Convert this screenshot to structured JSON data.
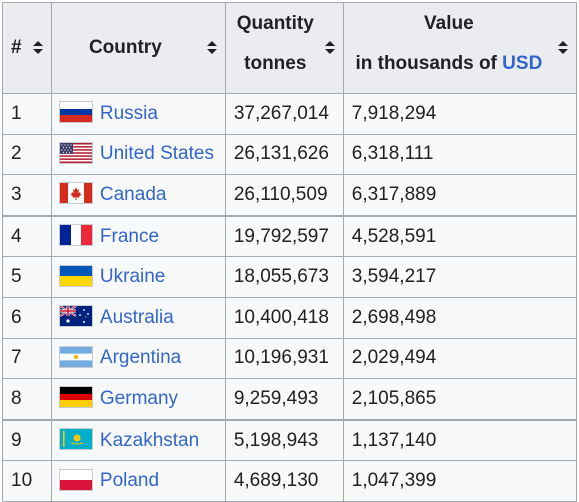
{
  "headers": {
    "rank": "#",
    "country": "Country",
    "quantity_line1": "Quantity",
    "quantity_line2": "tonnes",
    "value_line1": "Value",
    "value_line2_prefix": "in thousands of ",
    "value_line2_link": "USD"
  },
  "rows": [
    {
      "rank": "1",
      "country": "Russia",
      "flag": "russia-flag",
      "quantity": "37,267,014",
      "value": "7,918,294"
    },
    {
      "rank": "2",
      "country": "United States",
      "flag": "usa-flag",
      "quantity": "26,131,626",
      "value": "6,318,111"
    },
    {
      "rank": "3",
      "country": "Canada",
      "flag": "canada-flag",
      "quantity": "26,110,509",
      "value": "6,317,889"
    },
    {
      "rank": "4",
      "country": "France",
      "flag": "france-flag",
      "quantity": "19,792,597",
      "value": "4,528,591"
    },
    {
      "rank": "5",
      "country": "Ukraine",
      "flag": "ukraine-flag",
      "quantity": "18,055,673",
      "value": "3,594,217"
    },
    {
      "rank": "6",
      "country": "Australia",
      "flag": "australia-flag",
      "quantity": "10,400,418",
      "value": "2,698,498"
    },
    {
      "rank": "7",
      "country": "Argentina",
      "flag": "argentina-flag",
      "quantity": "10,196,931",
      "value": "2,029,494"
    },
    {
      "rank": "8",
      "country": "Germany",
      "flag": "germany-flag",
      "quantity": "9,259,493",
      "value": "2,105,865"
    },
    {
      "rank": "9",
      "country": "Kazakhstan",
      "flag": "kazakhstan-flag",
      "quantity": "5,198,943",
      "value": "1,137,140"
    },
    {
      "rank": "10",
      "country": "Poland",
      "flag": "poland-flag",
      "quantity": "4,689,130",
      "value": "1,047,399"
    }
  ],
  "colors": {
    "link": "#3366cc",
    "header_bg": "#eaecf0",
    "cell_bg": "#f8f9fa",
    "border": "#a2a9b1",
    "text": "#202122"
  }
}
